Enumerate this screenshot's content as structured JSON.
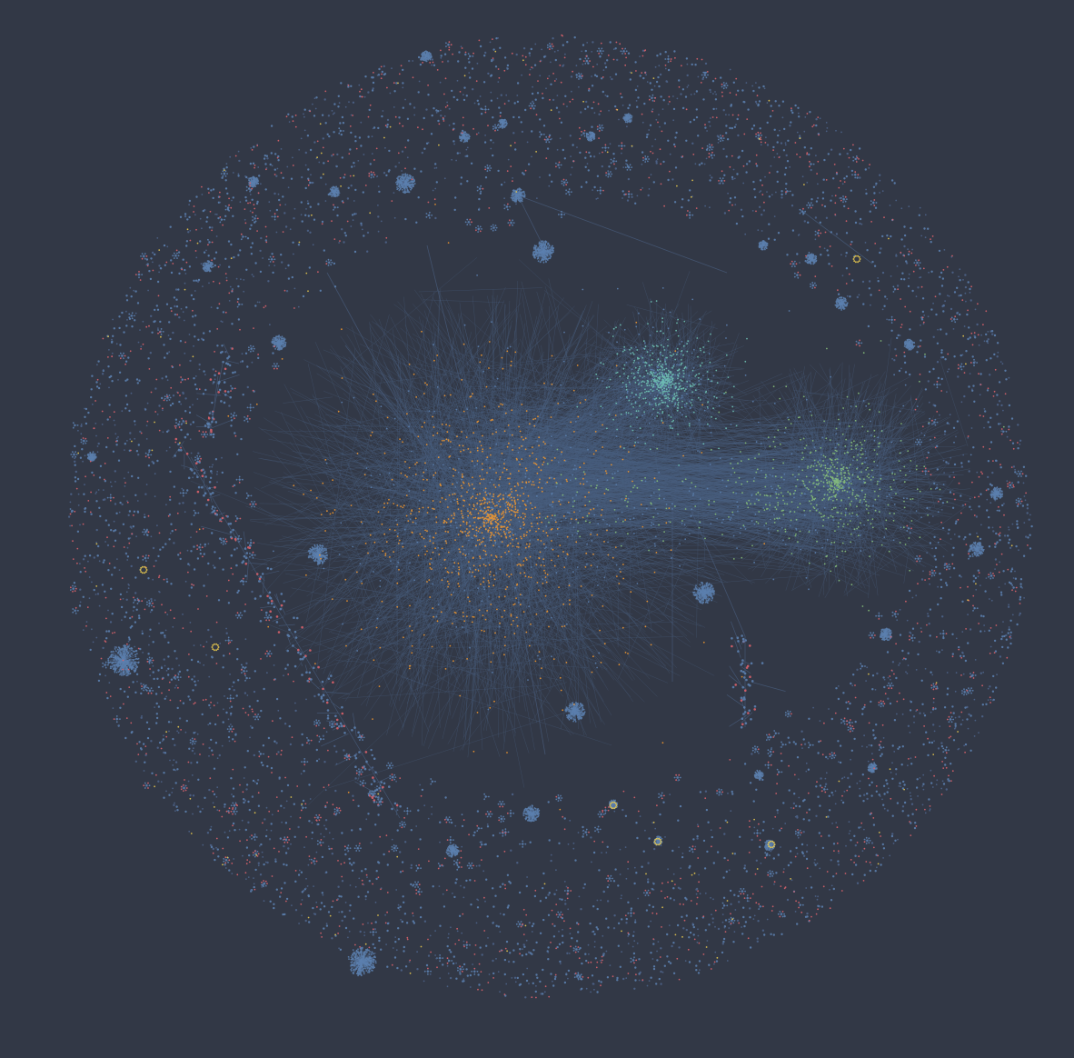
{
  "diagram": {
    "type": "network-graph",
    "layout": "force-directed",
    "labels_visible": false
  },
  "colors": {
    "background": "#323846",
    "edge": "#4a5f80",
    "node_default": "#5b7fae",
    "node_dim": "#4d6388",
    "cluster_orange": "#f0962e",
    "cluster_teal": "#6fc2b4",
    "cluster_green": "#86bf7a",
    "periphery_red": "#d9626a",
    "accent_yellow": "#e8c94e"
  },
  "clusters": [
    {
      "id": "main-hub",
      "color": "cluster_orange",
      "relative_size": "largest"
    },
    {
      "id": "teal-hub",
      "color": "cluster_teal",
      "relative_size": "medium"
    },
    {
      "id": "green-hub",
      "color": "cluster_green",
      "relative_size": "large"
    }
  ],
  "periphery": {
    "shape": "ring of small disconnected components",
    "colors": [
      "node_dim",
      "periphery_red",
      "accent_yellow",
      "node_default"
    ]
  }
}
